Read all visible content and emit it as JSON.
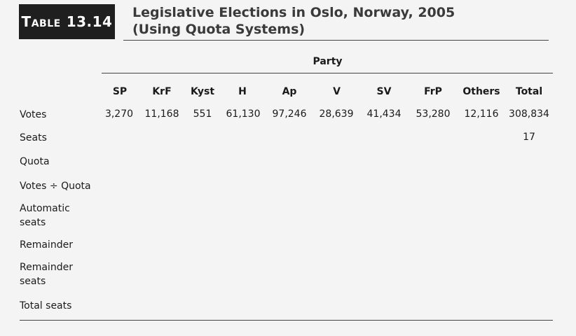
{
  "table": {
    "label_word": "Table",
    "label_number": "13.14",
    "title_line1": "Legislative Elections in Oslo, Norway, 2005",
    "title_line2": "(Using Quota Systems)",
    "group_header": "Party",
    "columns": [
      "SP",
      "KrF",
      "Kyst",
      "H",
      "Ap",
      "V",
      "SV",
      "FrP",
      "Others",
      "Total"
    ],
    "rows": [
      {
        "label": "Votes",
        "values": [
          "3,270",
          "11,168",
          "551",
          "61,130",
          "97,246",
          "28,639",
          "41,434",
          "53,280",
          "12,116",
          "308,834"
        ]
      },
      {
        "label": "Seats",
        "values": [
          "",
          "",
          "",
          "",
          "",
          "",
          "",
          "",
          "",
          "17"
        ]
      },
      {
        "label": "Quota",
        "values": [
          "",
          "",
          "",
          "",
          "",
          "",
          "",
          "",
          "",
          ""
        ]
      },
      {
        "label": "Votes ÷ Quota",
        "values": [
          "",
          "",
          "",
          "",
          "",
          "",
          "",
          "",
          "",
          ""
        ]
      },
      {
        "label": "Automatic seats",
        "values": [
          "",
          "",
          "",
          "",
          "",
          "",
          "",
          "",
          "",
          ""
        ]
      },
      {
        "label": "Remainder",
        "values": [
          "",
          "",
          "",
          "",
          "",
          "",
          "",
          "",
          "",
          ""
        ]
      },
      {
        "label": "Remainder seats",
        "values": [
          "",
          "",
          "",
          "",
          "",
          "",
          "",
          "",
          "",
          ""
        ]
      },
      {
        "label": "Total seats",
        "values": [
          "",
          "",
          "",
          "",
          "",
          "",
          "",
          "",
          "",
          ""
        ]
      }
    ]
  }
}
